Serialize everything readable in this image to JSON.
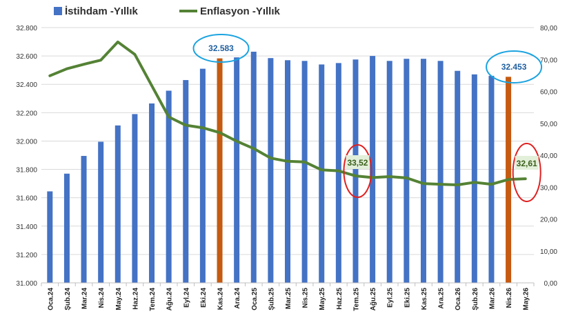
{
  "chart_data": {
    "type": "bar",
    "categories": [
      "Oca.24",
      "Şub.24",
      "Mar.24",
      "Nis.24",
      "May.24",
      "Haz.24",
      "Tem.24",
      "Ağu.24",
      "Eyl.24",
      "Eki.24",
      "Kas.24",
      "Ara.24",
      "Oca.25",
      "Şub.25",
      "Mar.25",
      "Nis.25",
      "May.25",
      "Haz.25",
      "Tem.25",
      "Ağu.25",
      "Eyl.25",
      "Eki.25",
      "Kas.25",
      "Ara.25",
      "Oca.26",
      "Şub.26",
      "Mar.26",
      "Nis.26",
      "May.26"
    ],
    "series": [
      {
        "name": "İstihdam -Yıllık",
        "type": "bar",
        "axis": "left",
        "color": "#4472c4",
        "highlight_color": "#c55a11",
        "highlight_categories": [
          "Kas.24",
          "Nis.26"
        ],
        "values": [
          31645,
          31770,
          31895,
          31995,
          32110,
          32190,
          32265,
          32355,
          32430,
          32510,
          32583,
          32590,
          32630,
          32585,
          32570,
          32565,
          32540,
          32550,
          32575,
          32600,
          32565,
          32580,
          32580,
          32565,
          32495,
          32470,
          32460,
          32453,
          null
        ]
      },
      {
        "name": "Enflasyon -Yıllık",
        "type": "line",
        "axis": "right",
        "color": "#548235",
        "values": [
          64.9,
          67.1,
          68.5,
          69.8,
          75.5,
          71.6,
          61.8,
          52.0,
          49.4,
          48.6,
          47.1,
          44.4,
          42.1,
          39.1,
          38.1,
          37.9,
          35.4,
          35.1,
          33.52,
          33.0,
          33.3,
          32.9,
          31.1,
          30.9,
          30.7,
          31.5,
          30.9,
          32.4,
          32.61
        ]
      }
    ],
    "y_left": {
      "min": 31000,
      "max": 32800,
      "step": 200,
      "tick_labels": [
        "31.000",
        "31.200",
        "31.400",
        "31.600",
        "31.800",
        "32.000",
        "32.200",
        "32.400",
        "32.600",
        "32.800"
      ]
    },
    "y_right": {
      "min": 0,
      "max": 80,
      "step": 10,
      "tick_labels": [
        "0,00",
        "10,00",
        "20,00",
        "30,00",
        "40,00",
        "50,00",
        "60,00",
        "70,00",
        "80,00"
      ]
    },
    "legend": {
      "placement": "top-left",
      "items": [
        {
          "label": "İstihdam -Yıllık",
          "color": "#4472c4",
          "marker": "square"
        },
        {
          "label": "Enflasyon -Yıllık",
          "color": "#548235",
          "marker": "line"
        }
      ]
    },
    "annotations": [
      {
        "text": "32.583",
        "category": "Kas.24",
        "series": "İstihdam -Yıllık",
        "style": "blue-ellipse"
      },
      {
        "text": "32.453",
        "category": "Nis.26",
        "series": "İstihdam -Yıllık",
        "style": "blue-ellipse"
      },
      {
        "text": "33,52",
        "category": "Tem.25",
        "series": "Enflasyon -Yıllık",
        "style": "red-ellipse"
      },
      {
        "text": "32,61",
        "category": "May.26",
        "series": "Enflasyon -Yıllık",
        "style": "red-ellipse"
      }
    ],
    "grid": true
  }
}
